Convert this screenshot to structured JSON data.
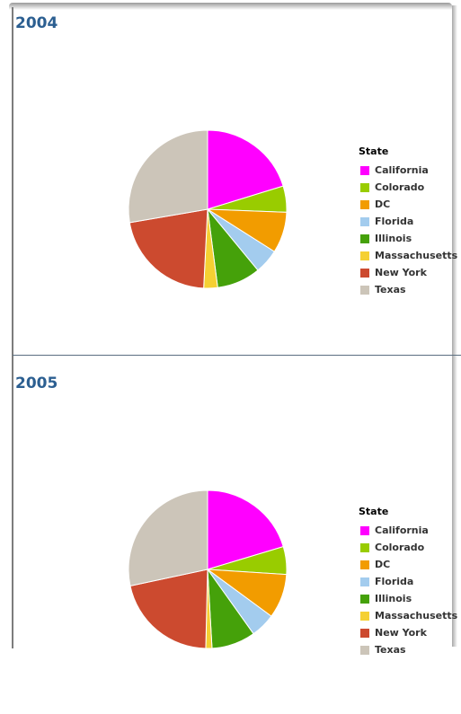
{
  "chart_data": [
    {
      "type": "pie",
      "title": "2004",
      "legend_title": "State",
      "legend_position": "right",
      "categories": [
        "California",
        "Colorado",
        "DC",
        "Florida",
        "Illinois",
        "Massachusetts",
        "New York",
        "Texas"
      ],
      "values": [
        19.3,
        5.1,
        8.0,
        4.8,
        8.5,
        2.7,
        20.5,
        26.4
      ],
      "colors": [
        "#ff00ff",
        "#99cc00",
        "#f29c00",
        "#a3ccee",
        "#45a10a",
        "#f5d033",
        "#cc4a2f",
        "#ccc5b9"
      ]
    },
    {
      "type": "pie",
      "title": "2005",
      "legend_title": "State",
      "legend_position": "right",
      "categories": [
        "California",
        "Colorado",
        "DC",
        "Florida",
        "Illinois",
        "Massachusetts",
        "New York",
        "Texas"
      ],
      "values": [
        19.3,
        5.4,
        8.6,
        4.8,
        8.5,
        1.2,
        20.2,
        26.9
      ],
      "colors": [
        "#ff00ff",
        "#99cc00",
        "#f29c00",
        "#a3ccee",
        "#45a10a",
        "#f5d033",
        "#cc4a2f",
        "#ccc5b9"
      ]
    }
  ]
}
